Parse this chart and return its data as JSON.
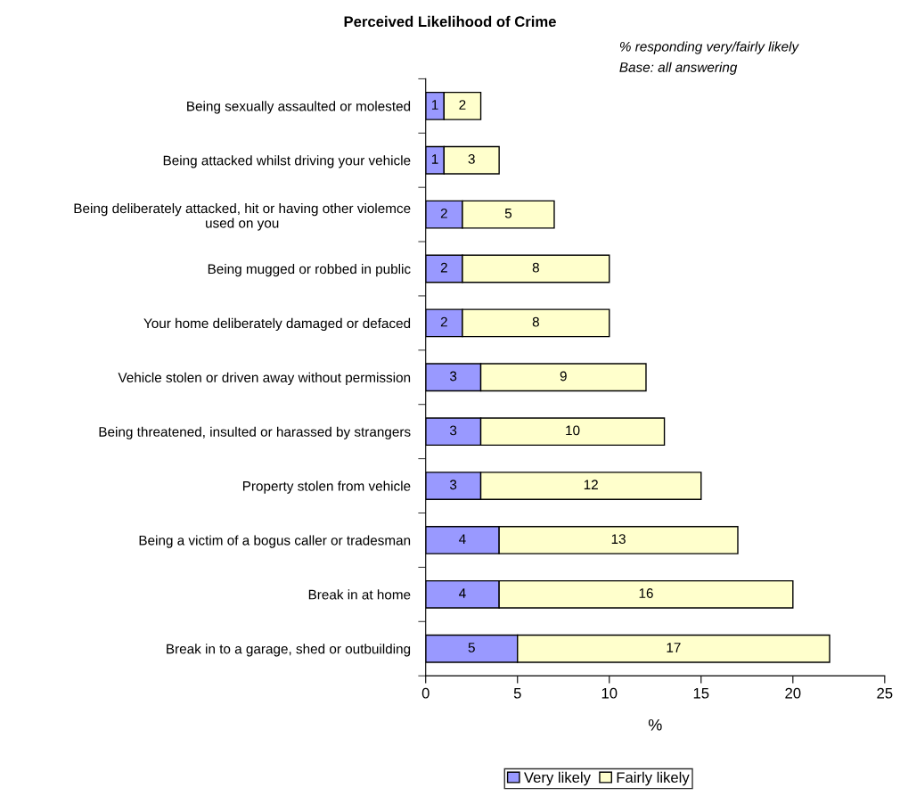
{
  "chart_data": {
    "type": "bar",
    "orientation": "horizontal",
    "stacked": true,
    "title": "Perceived Likelihood of Crime",
    "xlabel": "%",
    "annotations": [
      "% responding very/fairly likely",
      "Base: all answering"
    ],
    "categories": [
      "Being sexually assaulted or molested",
      "Being attacked whilst driving your vehicle",
      "Being deliberately attacked, hit or having other violemce\nused on you",
      "Being mugged or robbed in public",
      "Your home deliberately damaged or defaced",
      "Vehicle stolen or driven away without permission",
      "Being threatened, insulted or harassed by strangers",
      "Property stolen from vehicle",
      "Being a victim of a bogus caller or tradesman",
      "Break in at home",
      "Break in to a garage, shed or outbuilding"
    ],
    "series": [
      {
        "name": "Very likely",
        "color": "#9999ff",
        "values": [
          1,
          1,
          2,
          2,
          2,
          3,
          3,
          3,
          4,
          4,
          5
        ]
      },
      {
        "name": "Fairly likely",
        "color": "#ffffcc",
        "values": [
          2,
          3,
          5,
          8,
          8,
          9,
          10,
          12,
          13,
          16,
          17
        ]
      }
    ],
    "xlim": [
      0,
      25
    ],
    "xticks": [
      0,
      5,
      10,
      15,
      20,
      25
    ],
    "data_labels": true,
    "grid": false,
    "legend": "bottom"
  }
}
